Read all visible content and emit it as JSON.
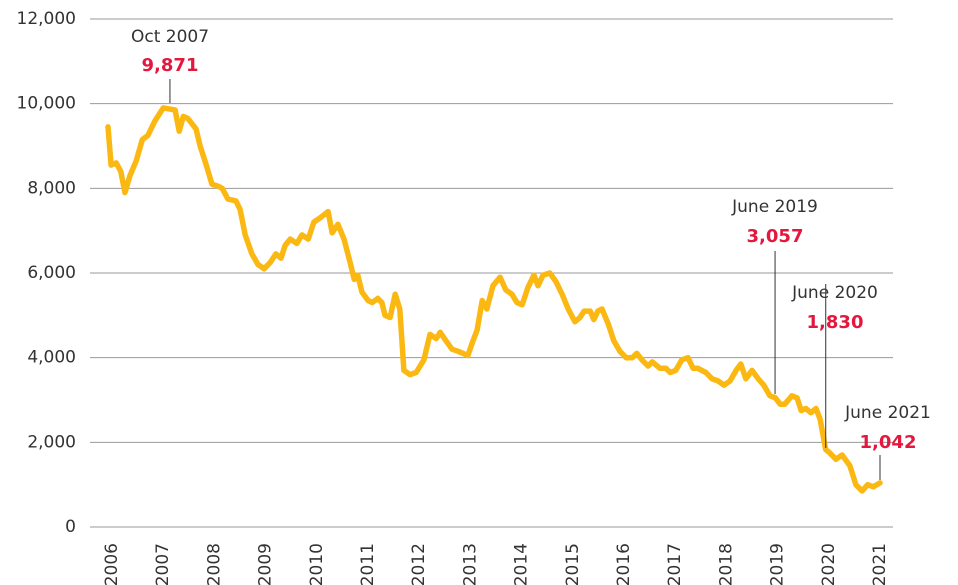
{
  "chart_data": {
    "type": "line",
    "x": [
      2005.96,
      2006.02,
      2006.12,
      2006.21,
      2006.29,
      2006.39,
      2006.51,
      2006.63,
      2006.74,
      2006.88,
      2007.04,
      2007.17,
      2007.27,
      2007.35,
      2007.43,
      2007.52,
      2007.68,
      2007.76,
      2007.88,
      2007.99,
      2008.11,
      2008.19,
      2008.3,
      2008.46,
      2008.54,
      2008.64,
      2008.77,
      2008.89,
      2009.01,
      2009.13,
      2009.24,
      2009.34,
      2009.42,
      2009.52,
      2009.65,
      2009.75,
      2009.87,
      2009.98,
      2010.1,
      2010.26,
      2010.34,
      2010.45,
      2010.57,
      2010.69,
      2010.77,
      2010.84,
      2010.92,
      2011.04,
      2011.12,
      2011.23,
      2011.31,
      2011.37,
      2011.47,
      2011.57,
      2011.66,
      2011.74,
      2011.86,
      2011.98,
      2012.13,
      2012.25,
      2012.37,
      2012.45,
      2012.56,
      2012.68,
      2012.8,
      2012.99,
      2013.09,
      2013.17,
      2013.27,
      2013.36,
      2013.48,
      2013.62,
      2013.73,
      2013.85,
      2013.95,
      2014.05,
      2014.16,
      2014.28,
      2014.36,
      2014.46,
      2014.59,
      2014.71,
      2014.83,
      2014.95,
      2015.08,
      2015.18,
      2015.26,
      2015.38,
      2015.45,
      2015.53,
      2015.61,
      2015.73,
      2015.84,
      2015.96,
      2016.08,
      2016.2,
      2016.29,
      2016.39,
      2016.51,
      2016.59,
      2016.74,
      2016.86,
      2016.94,
      2017.05,
      2017.17,
      2017.29,
      2017.39,
      2017.48,
      2017.64,
      2017.76,
      2017.88,
      2017.99,
      2018.11,
      2018.23,
      2018.32,
      2018.42,
      2018.54,
      2018.66,
      2018.77,
      2018.89,
      2018.99,
      2019.09,
      2019.18,
      2019.32,
      2019.42,
      2019.5,
      2019.59,
      2019.69,
      2019.79,
      2019.87,
      2019.98,
      2020.06,
      2020.18,
      2020.3,
      2020.45,
      2020.57,
      2020.69,
      2020.8,
      2020.91,
      2021.04
    ],
    "series": [
      {
        "color": "#fbb812",
        "values": [
          9450,
          8550,
          8600,
          8400,
          7900,
          8300,
          8650,
          9150,
          9250,
          9600,
          9900,
          9871,
          9850,
          9350,
          9700,
          9650,
          9400,
          9000,
          8550,
          8100,
          8050,
          8000,
          7750,
          7700,
          7500,
          6900,
          6450,
          6200,
          6100,
          6250,
          6450,
          6350,
          6650,
          6800,
          6700,
          6900,
          6800,
          7200,
          7300,
          7450,
          6950,
          7150,
          6800,
          6250,
          5850,
          5950,
          5550,
          5350,
          5300,
          5400,
          5300,
          5000,
          4950,
          5500,
          5150,
          3700,
          3600,
          3650,
          3950,
          4550,
          4450,
          4600,
          4400,
          4200,
          4150,
          4050,
          4400,
          4650,
          5350,
          5150,
          5700,
          5900,
          5600,
          5500,
          5300,
          5250,
          5650,
          5950,
          5700,
          5950,
          6000,
          5800,
          5500,
          5150,
          4850,
          4950,
          5100,
          5100,
          4900,
          5100,
          5150,
          4800,
          4400,
          4150,
          4000,
          4000,
          4100,
          3950,
          3800,
          3900,
          3750,
          3750,
          3650,
          3700,
          3950,
          4000,
          3750,
          3750,
          3650,
          3500,
          3450,
          3350,
          3450,
          3700,
          3850,
          3500,
          3700,
          3500,
          3350,
          3100,
          3057,
          2900,
          2900,
          3100,
          3050,
          2750,
          2800,
          2700,
          2800,
          2550,
          1830,
          1750,
          1600,
          1700,
          1450,
          1000,
          850,
          1000,
          950,
          1042
        ]
      }
    ],
    "xlim": [
      2005.96,
      2021.04
    ],
    "xticks": [
      2006,
      2007,
      2008,
      2009,
      2010,
      2011,
      2012,
      2013,
      2014,
      2015,
      2016,
      2017,
      2018,
      2019,
      2020,
      2021
    ],
    "ylim": [
      0,
      12000
    ],
    "yticks": [
      0,
      {
        "value": 2000,
        "label": "2,000"
      },
      {
        "value": 4000,
        "label": "4,000"
      },
      {
        "value": 6000,
        "label": "6,000"
      },
      {
        "value": 8000,
        "label": "8,000"
      },
      {
        "value": 10000,
        "label": "10,000"
      },
      {
        "value": 12000,
        "label": "12,000"
      }
    ],
    "grid": true,
    "annotations": [
      {
        "text": "Oct 2007",
        "value": 9871,
        "value_label": "9,871",
        "x": 2007.17
      },
      {
        "text": "June 2019",
        "value": 3057,
        "value_label": "3,057",
        "x": 2018.99
      },
      {
        "text": "June 2020",
        "value": 1830,
        "value_label": "1,830",
        "x": 2019.98
      },
      {
        "text": "June 2021",
        "value": 1042,
        "value_label": "1,042",
        "x": 2021.04
      }
    ]
  }
}
